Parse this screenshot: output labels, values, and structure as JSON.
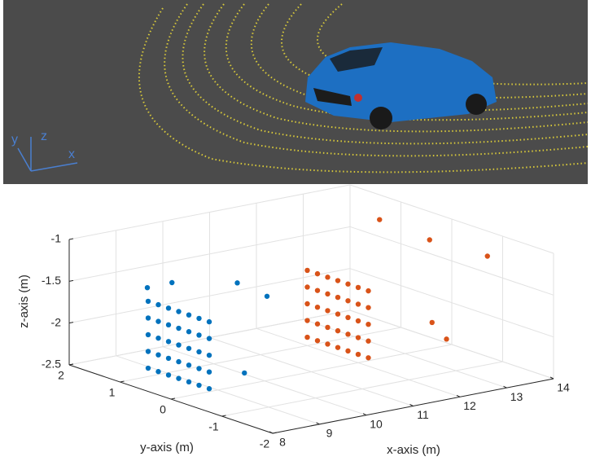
{
  "scene": {
    "axis_labels": {
      "x": "x",
      "y": "y",
      "z": "z"
    }
  },
  "chart_data": {
    "type": "scatter3d",
    "xlabel": "x-axis (m)",
    "ylabel": "y-axis (m)",
    "zlabel": "z-axis (m)",
    "xlim": [
      8,
      14
    ],
    "ylim": [
      -2,
      2
    ],
    "zlim": [
      -2.5,
      -1
    ],
    "xticks": [
      8,
      9,
      10,
      11,
      12,
      13,
      14
    ],
    "yticks": [
      -2,
      -1,
      0,
      1,
      2
    ],
    "zticks": [
      -2.5,
      -2,
      -1.5,
      -1
    ],
    "grid": true,
    "series": [
      {
        "color": "#0072BD",
        "x": [
          8.6,
          8.6,
          8.6,
          8.6,
          8.6,
          8.6,
          8.6,
          8.6,
          8.6,
          8.6,
          8.6,
          8.6,
          8.6,
          8.6,
          8.6,
          8.6,
          8.6,
          8.6,
          8.6,
          8.6,
          8.6,
          8.6,
          8.6,
          8.6,
          8.6,
          8.6,
          8.6,
          8.6,
          8.6,
          8.6,
          8.6,
          8.6,
          8.6,
          8.6,
          8.6,
          9.2,
          9.4,
          9.0,
          8.8,
          8.7
        ],
        "y": [
          1.0,
          0.8,
          0.6,
          0.4,
          0.2,
          0.0,
          -0.2,
          1.0,
          0.8,
          0.6,
          0.4,
          0.2,
          0.0,
          -0.2,
          1.0,
          0.8,
          0.6,
          0.4,
          0.2,
          0.0,
          -0.2,
          1.0,
          0.8,
          0.6,
          0.4,
          0.2,
          0.0,
          -0.2,
          1.0,
          0.8,
          0.6,
          0.4,
          0.2,
          0.0,
          -0.2,
          -0.2,
          -0.6,
          0.9,
          1.2,
          -0.8
        ],
        "z": [
          -2.4,
          -2.4,
          -2.4,
          -2.4,
          -2.4,
          -2.4,
          -2.4,
          -2.2,
          -2.2,
          -2.2,
          -2.2,
          -2.2,
          -2.2,
          -2.2,
          -2.0,
          -2.0,
          -2.0,
          -2.0,
          -2.0,
          -2.0,
          -2.0,
          -1.8,
          -1.8,
          -1.8,
          -1.8,
          -1.8,
          -1.8,
          -1.8,
          -1.6,
          -1.6,
          -1.6,
          -1.6,
          -1.6,
          -1.6,
          -1.6,
          -1.2,
          -1.3,
          -1.4,
          -1.5,
          -2.1
        ]
      },
      {
        "color": "#D95319",
        "x": [
          12.0,
          12.0,
          12.0,
          12.0,
          12.0,
          12.0,
          12.0,
          12.0,
          12.0,
          12.0,
          12.0,
          12.0,
          12.0,
          12.0,
          12.0,
          12.0,
          12.0,
          12.0,
          12.0,
          12.0,
          12.0,
          12.0,
          12.0,
          12.0,
          12.0,
          12.0,
          12.0,
          12.0,
          12.0,
          12.0,
          12.0,
          12.0,
          12.0,
          12.0,
          12.0,
          13.2,
          13.0,
          12.6,
          14.0,
          12.8
        ],
        "y": [
          1.0,
          0.8,
          0.6,
          0.4,
          0.2,
          0.0,
          -0.2,
          1.0,
          0.8,
          0.6,
          0.4,
          0.2,
          0.0,
          -0.2,
          1.0,
          0.8,
          0.6,
          0.4,
          0.2,
          0.0,
          -0.2,
          1.0,
          0.8,
          0.6,
          0.4,
          0.2,
          0.0,
          -0.2,
          1.0,
          0.8,
          0.6,
          0.4,
          0.2,
          0.0,
          -0.2,
          -0.3,
          0.5,
          -0.9,
          -0.7,
          -1.0
        ],
        "z": [
          -2.4,
          -2.4,
          -2.4,
          -2.4,
          -2.4,
          -2.4,
          -2.4,
          -2.2,
          -2.2,
          -2.2,
          -2.2,
          -2.2,
          -2.2,
          -2.2,
          -2.0,
          -2.0,
          -2.0,
          -2.0,
          -2.0,
          -2.0,
          -2.0,
          -1.8,
          -1.8,
          -1.8,
          -1.8,
          -1.8,
          -1.8,
          -1.8,
          -1.6,
          -1.6,
          -1.6,
          -1.6,
          -1.6,
          -1.6,
          -1.6,
          -1.1,
          -1.0,
          -1.9,
          -1.3,
          -2.1
        ]
      }
    ]
  }
}
